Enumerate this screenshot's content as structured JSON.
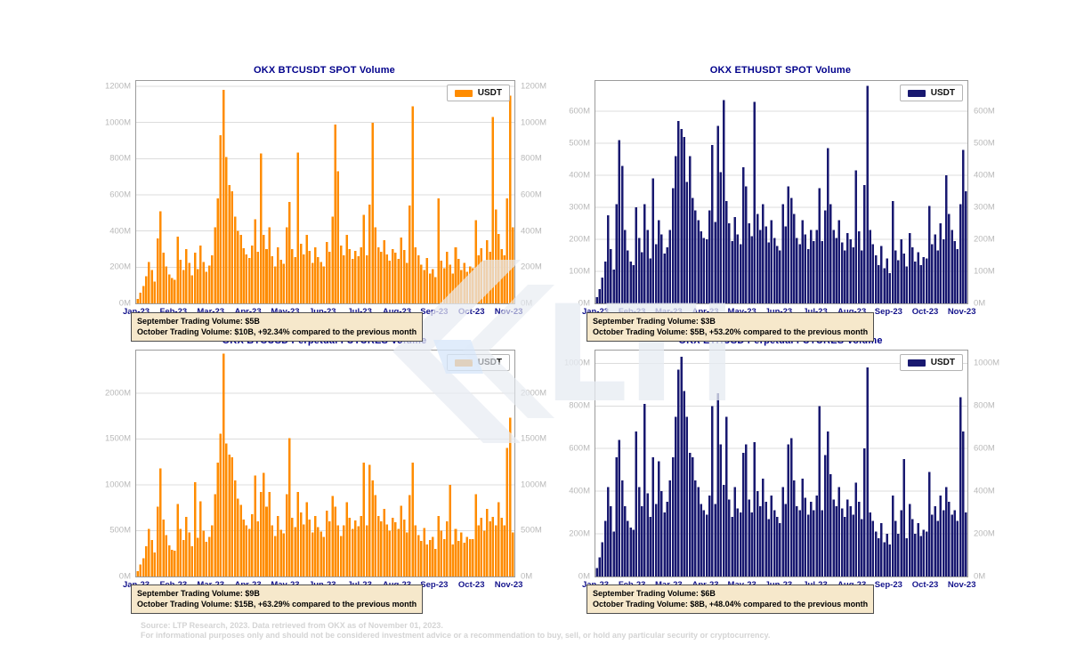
{
  "watermark": {
    "text": "LTP"
  },
  "footer": {
    "line1": "Source: LTP Research, 2023. Data retrieved from OKX as of November 01, 2023.",
    "line2": "For informational purposes only and should not be considered investment advice or a recommendation to buy, sell, or hold any particular security or cryptocurrency."
  },
  "chart_data": [
    {
      "type": "bar",
      "title": "OKX BTCUSDT SPOT Volume",
      "legend": "USDT",
      "series_name": "USDT",
      "bar_color": "#ff8c00",
      "unit": "M",
      "ylim": [
        0,
        1230
      ],
      "yticks": [
        0,
        200,
        400,
        600,
        800,
        1000,
        1200
      ],
      "grid": true,
      "legend_position": "top-right",
      "xtick_labels": [
        "Jan-23",
        "Feb-23",
        "Mar-23",
        "Apr-23",
        "May-23",
        "Jun-23",
        "Jul-23",
        "Aug-23",
        "Sep-23",
        "Oct-23",
        "Nov-23"
      ],
      "points_per_month": 13,
      "values": [
        25,
        60,
        95,
        150,
        230,
        185,
        120,
        360,
        510,
        280,
        205,
        160,
        140,
        130,
        370,
        240,
        185,
        300,
        225,
        155,
        280,
        190,
        320,
        230,
        175,
        210,
        265,
        420,
        580,
        930,
        1180,
        810,
        655,
        620,
        480,
        400,
        380,
        305,
        270,
        250,
        320,
        465,
        285,
        830,
        380,
        300,
        420,
        260,
        205,
        310,
        240,
        220,
        420,
        560,
        300,
        255,
        835,
        330,
        270,
        380,
        290,
        225,
        310,
        255,
        230,
        205,
        340,
        285,
        480,
        990,
        730,
        320,
        265,
        380,
        300,
        245,
        290,
        260,
        310,
        490,
        265,
        545,
        1000,
        420,
        310,
        285,
        350,
        270,
        235,
        300,
        280,
        245,
        365,
        295,
        225,
        540,
        1090,
        310,
        265,
        215,
        185,
        250,
        165,
        190,
        145,
        580,
        235,
        195,
        285,
        215,
        165,
        310,
        245,
        185,
        225,
        175,
        205,
        195,
        460,
        265,
        305,
        235,
        350,
        285,
        1030,
        520,
        385,
        300,
        265,
        580,
        1150,
        420
      ],
      "annotation": {
        "line1": "September Trading Volume: $5B",
        "line2": "October Trading Volume: $10B, +92.34% compared to the previous month"
      }
    },
    {
      "type": "bar",
      "title": "OKX ETHUSDT SPOT Volume",
      "legend": "USDT",
      "series_name": "USDT",
      "bar_color": "#191970",
      "unit": "M",
      "ylim": [
        0,
        695
      ],
      "yticks": [
        0,
        100,
        200,
        300,
        400,
        500,
        600
      ],
      "grid": true,
      "legend_position": "top-right",
      "xtick_labels": [
        "Jan-23",
        "Feb-23",
        "Mar-23",
        "Apr-23",
        "May-23",
        "Jun-23",
        "Jul-23",
        "Aug-23",
        "Sep-23",
        "Oct-23",
        "Nov-23"
      ],
      "points_per_month": 13,
      "values": [
        20,
        45,
        80,
        130,
        275,
        170,
        105,
        310,
        510,
        430,
        230,
        165,
        130,
        120,
        300,
        205,
        160,
        310,
        230,
        140,
        390,
        185,
        260,
        215,
        155,
        175,
        230,
        360,
        460,
        570,
        545,
        520,
        380,
        460,
        330,
        290,
        260,
        225,
        205,
        200,
        290,
        495,
        255,
        555,
        410,
        635,
        320,
        250,
        195,
        270,
        215,
        185,
        425,
        365,
        250,
        210,
        630,
        280,
        230,
        310,
        240,
        190,
        260,
        205,
        180,
        165,
        310,
        240,
        365,
        330,
        280,
        205,
        185,
        260,
        215,
        170,
        230,
        195,
        230,
        360,
        195,
        290,
        485,
        310,
        230,
        205,
        260,
        190,
        165,
        220,
        200,
        175,
        415,
        225,
        165,
        370,
        680,
        230,
        185,
        150,
        120,
        180,
        110,
        140,
        95,
        320,
        165,
        135,
        200,
        155,
        115,
        220,
        175,
        130,
        160,
        120,
        145,
        140,
        305,
        185,
        215,
        165,
        250,
        200,
        400,
        280,
        230,
        195,
        170,
        310,
        480,
        350
      ],
      "annotation": {
        "line1": "September Trading Volume: $3B",
        "line2": "October Trading Volume: $5B, +53.20% compared to the previous month"
      }
    },
    {
      "type": "bar",
      "title": "OKX BTCUSD Perpetual FUTURES Volume",
      "legend": "USDT",
      "series_name": "USDT",
      "bar_color": "#ff8c00",
      "unit": "M",
      "ylim": [
        0,
        2465
      ],
      "yticks": [
        0,
        500,
        1000,
        1500,
        2000
      ],
      "grid": true,
      "legend_position": "top-right",
      "xtick_labels": [
        "Jan-23",
        "Feb-23",
        "Mar-23",
        "Apr-23",
        "May-23",
        "Jun-23",
        "Jul-23",
        "Aug-23",
        "Sep-23",
        "Oct-23",
        "Nov-23"
      ],
      "points_per_month": 13,
      "values": [
        60,
        130,
        200,
        330,
        520,
        400,
        260,
        760,
        1180,
        620,
        450,
        340,
        290,
        280,
        790,
        520,
        400,
        650,
        480,
        330,
        1030,
        420,
        820,
        500,
        380,
        430,
        560,
        900,
        1240,
        1560,
        2430,
        1450,
        1330,
        1300,
        1050,
        850,
        780,
        620,
        560,
        520,
        680,
        1100,
        600,
        920,
        1130,
        760,
        920,
        560,
        440,
        660,
        510,
        470,
        900,
        1510,
        640,
        540,
        920,
        700,
        570,
        810,
        620,
        480,
        660,
        540,
        490,
        430,
        720,
        600,
        880,
        760,
        560,
        440,
        560,
        810,
        640,
        520,
        610,
        550,
        660,
        1240,
        560,
        1220,
        1050,
        890,
        660,
        600,
        740,
        570,
        500,
        640,
        590,
        520,
        770,
        620,
        480,
        890,
        1240,
        560,
        450,
        390,
        530,
        350,
        400,
        430,
        300,
        660,
        500,
        410,
        600,
        1000,
        350,
        520,
        390,
        480,
        370,
        430,
        410,
        410,
        900,
        560,
        640,
        500,
        740,
        600,
        650,
        560,
        810,
        640,
        560,
        1400,
        1730,
        480
      ],
      "annotation": {
        "line1": "September Trading Volume: $9B",
        "line2": "October Trading Volume: $15B, +63.29% compared to the previous month"
      }
    },
    {
      "type": "bar",
      "title": "OKX ETHUSD Perpetual FUTURES Volume",
      "legend": "USDT",
      "series_name": "USDT",
      "bar_color": "#191970",
      "unit": "M",
      "ylim": [
        0,
        1060
      ],
      "yticks": [
        0,
        200,
        400,
        600,
        800,
        1000
      ],
      "grid": true,
      "legend_position": "top-right",
      "xtick_labels": [
        "Jan-23",
        "Feb-23",
        "Mar-23",
        "Apr-23",
        "May-23",
        "Jun-23",
        "Jul-23",
        "Aug-23",
        "Sep-23",
        "Oct-23",
        "Nov-23"
      ],
      "points_per_month": 13,
      "values": [
        40,
        90,
        160,
        260,
        420,
        330,
        210,
        560,
        640,
        450,
        330,
        260,
        230,
        220,
        680,
        420,
        330,
        810,
        390,
        280,
        560,
        340,
        540,
        400,
        300,
        350,
        450,
        560,
        750,
        970,
        1030,
        870,
        750,
        580,
        560,
        450,
        420,
        340,
        310,
        290,
        380,
        800,
        340,
        860,
        620,
        430,
        750,
        360,
        280,
        420,
        320,
        300,
        580,
        620,
        360,
        300,
        630,
        400,
        330,
        460,
        350,
        270,
        380,
        310,
        280,
        250,
        420,
        340,
        620,
        650,
        450,
        330,
        310,
        460,
        370,
        290,
        350,
        310,
        380,
        800,
        310,
        570,
        680,
        480,
        360,
        330,
        420,
        320,
        280,
        360,
        330,
        290,
        440,
        350,
        270,
        600,
        980,
        300,
        260,
        210,
        180,
        250,
        160,
        200,
        150,
        380,
        260,
        200,
        310,
        550,
        180,
        340,
        270,
        200,
        250,
        190,
        220,
        210,
        490,
        290,
        330,
        260,
        380,
        310,
        420,
        350,
        290,
        310,
        260,
        840,
        680,
        300
      ],
      "annotation": {
        "line1": "September Trading Volume: $6B",
        "line2": "October Trading Volume: $8B, +48.04% compared to the previous month"
      }
    }
  ]
}
